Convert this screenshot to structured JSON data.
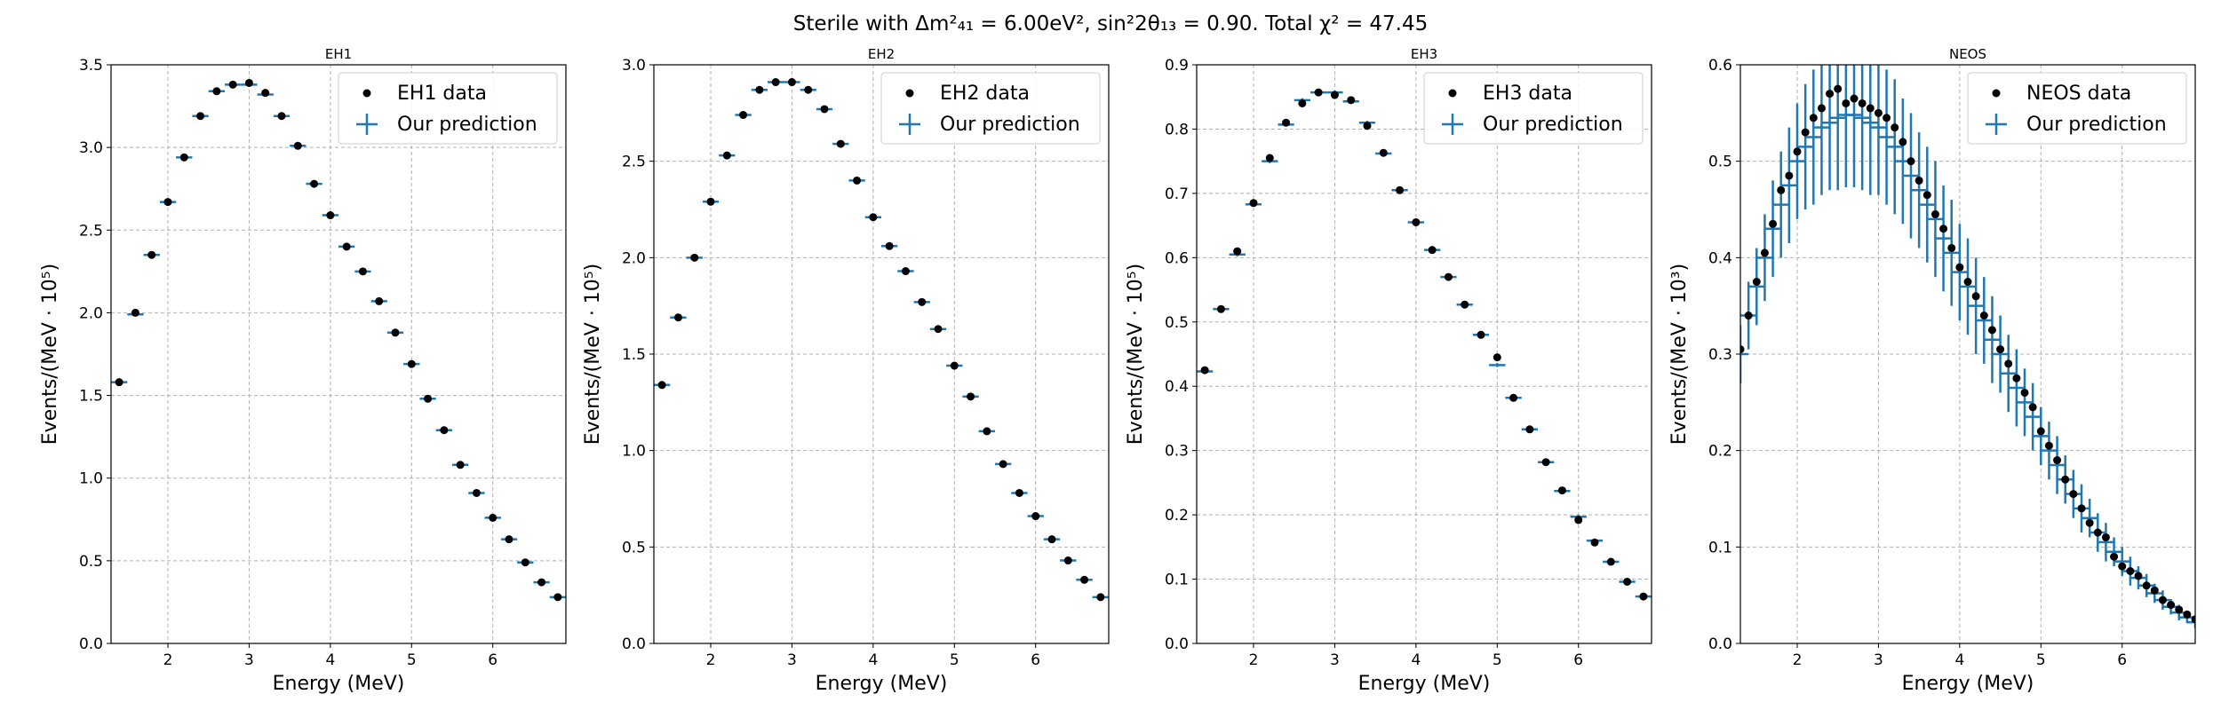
{
  "figure": {
    "suptitle": "Sterile with Δm²₄₁ = 6.00eV², sin²2θ₁₃ = 0.90. Total χ² = 47.45",
    "colors": {
      "data": "#000000",
      "prediction": "#1f77b4",
      "grid": "#b0b0b0"
    }
  },
  "chart_data": [
    {
      "type": "scatter",
      "title": "EH1",
      "xlabel": "Energy (MeV)",
      "ylabel": "Events/(MeV · 10⁵)",
      "xlim": [
        1.3,
        6.9
      ],
      "ylim": [
        0,
        3.5
      ],
      "xticks": [
        "2",
        "3",
        "4",
        "5",
        "6"
      ],
      "yticks": [
        "0.0",
        "0.5",
        "1.0",
        "1.5",
        "2.0",
        "2.5",
        "3.0",
        "3.5"
      ],
      "grid": true,
      "legend_position": "top-right",
      "x": [
        1.4,
        1.6,
        1.8,
        2.0,
        2.2,
        2.4,
        2.6,
        2.8,
        3.0,
        3.2,
        3.4,
        3.6,
        3.8,
        4.0,
        4.2,
        4.4,
        4.6,
        4.8,
        5.0,
        5.2,
        5.4,
        5.6,
        5.8,
        6.0,
        6.2,
        6.4,
        6.6,
        6.8
      ],
      "series": [
        {
          "name": "EH1 data",
          "marker": "dot",
          "values": [
            1.58,
            2.0,
            2.35,
            2.67,
            2.94,
            3.19,
            3.34,
            3.38,
            3.39,
            3.33,
            3.19,
            3.01,
            2.78,
            2.59,
            2.4,
            2.25,
            2.07,
            1.88,
            1.69,
            1.48,
            1.29,
            1.08,
            0.91,
            0.76,
            0.63,
            0.49,
            0.37,
            0.28
          ]
        },
        {
          "name": "Our prediction",
          "marker": "cross",
          "values": [
            1.58,
            1.99,
            2.35,
            2.67,
            2.94,
            3.19,
            3.34,
            3.38,
            3.38,
            3.32,
            3.19,
            3.01,
            2.78,
            2.59,
            2.4,
            2.25,
            2.07,
            1.88,
            1.69,
            1.48,
            1.29,
            1.08,
            0.91,
            0.76,
            0.63,
            0.49,
            0.37,
            0.28
          ],
          "xerr": 0.1,
          "yerr": 0.006
        }
      ]
    },
    {
      "type": "scatter",
      "title": "EH2",
      "xlabel": "Energy (MeV)",
      "ylabel": "Events/(MeV · 10⁵)",
      "xlim": [
        1.3,
        6.9
      ],
      "ylim": [
        0,
        3.0
      ],
      "xticks": [
        "2",
        "3",
        "4",
        "5",
        "6"
      ],
      "yticks": [
        "0.0",
        "0.5",
        "1.0",
        "1.5",
        "2.0",
        "2.5",
        "3.0"
      ],
      "grid": true,
      "legend_position": "top-right",
      "x": [
        1.4,
        1.6,
        1.8,
        2.0,
        2.2,
        2.4,
        2.6,
        2.8,
        3.0,
        3.2,
        3.4,
        3.6,
        3.8,
        4.0,
        4.2,
        4.4,
        4.6,
        4.8,
        5.0,
        5.2,
        5.4,
        5.6,
        5.8,
        6.0,
        6.2,
        6.4,
        6.6,
        6.8
      ],
      "series": [
        {
          "name": "EH2 data",
          "marker": "dot",
          "values": [
            1.34,
            1.69,
            2.0,
            2.29,
            2.53,
            2.74,
            2.87,
            2.91,
            2.91,
            2.87,
            2.77,
            2.59,
            2.4,
            2.21,
            2.06,
            1.93,
            1.77,
            1.63,
            1.44,
            1.28,
            1.1,
            0.93,
            0.78,
            0.66,
            0.54,
            0.43,
            0.33,
            0.24
          ]
        },
        {
          "name": "Our prediction",
          "marker": "cross",
          "values": [
            1.34,
            1.69,
            2.0,
            2.29,
            2.53,
            2.74,
            2.87,
            2.91,
            2.91,
            2.87,
            2.77,
            2.59,
            2.4,
            2.21,
            2.06,
            1.93,
            1.77,
            1.63,
            1.44,
            1.28,
            1.1,
            0.93,
            0.78,
            0.66,
            0.54,
            0.43,
            0.33,
            0.24
          ],
          "xerr": 0.1,
          "yerr": 0.006
        }
      ]
    },
    {
      "type": "scatter",
      "title": "EH3",
      "xlabel": "Energy (MeV)",
      "ylabel": "Events/(MeV · 10⁵)",
      "xlim": [
        1.3,
        6.9
      ],
      "ylim": [
        0,
        0.9
      ],
      "xticks": [
        "2",
        "3",
        "4",
        "5",
        "6"
      ],
      "yticks": [
        "0.0",
        "0.1",
        "0.2",
        "0.3",
        "0.4",
        "0.5",
        "0.6",
        "0.7",
        "0.8",
        "0.9"
      ],
      "grid": true,
      "legend_position": "top-right",
      "x": [
        1.4,
        1.6,
        1.8,
        2.0,
        2.2,
        2.4,
        2.6,
        2.8,
        3.0,
        3.2,
        3.4,
        3.6,
        3.8,
        4.0,
        4.2,
        4.4,
        4.6,
        4.8,
        5.0,
        5.2,
        5.4,
        5.6,
        5.8,
        6.0,
        6.2,
        6.4,
        6.6,
        6.8
      ],
      "series": [
        {
          "name": "EH3 data",
          "marker": "dot",
          "values": [
            0.425,
            0.52,
            0.61,
            0.685,
            0.755,
            0.81,
            0.84,
            0.857,
            0.853,
            0.845,
            0.805,
            0.763,
            0.705,
            0.655,
            0.612,
            0.57,
            0.527,
            0.48,
            0.445,
            0.382,
            0.333,
            0.282,
            0.238,
            0.192,
            0.157,
            0.127,
            0.096,
            0.073
          ]
        },
        {
          "name": "Our prediction",
          "marker": "cross",
          "values": [
            0.423,
            0.52,
            0.605,
            0.683,
            0.75,
            0.807,
            0.845,
            0.857,
            0.857,
            0.843,
            0.81,
            0.762,
            0.705,
            0.655,
            0.612,
            0.57,
            0.527,
            0.48,
            0.433,
            0.382,
            0.333,
            0.282,
            0.237,
            0.197,
            0.16,
            0.127,
            0.096,
            0.073
          ],
          "xerr": 0.1,
          "yerr": 0.003
        }
      ]
    },
    {
      "type": "scatter",
      "title": "NEOS",
      "xlabel": "Energy (MeV)",
      "ylabel": "Events/(MeV · 10³)",
      "xlim": [
        1.3,
        6.9
      ],
      "ylim": [
        0,
        0.6
      ],
      "xticks": [
        "2",
        "3",
        "4",
        "5",
        "6"
      ],
      "yticks": [
        "0.0",
        "0.1",
        "0.2",
        "0.3",
        "0.4",
        "0.5",
        "0.6"
      ],
      "grid": true,
      "legend_position": "top-right",
      "x": [
        1.3,
        1.4,
        1.5,
        1.6,
        1.7,
        1.8,
        1.9,
        2.0,
        2.1,
        2.2,
        2.3,
        2.4,
        2.5,
        2.6,
        2.7,
        2.8,
        2.9,
        3.0,
        3.1,
        3.2,
        3.3,
        3.4,
        3.5,
        3.6,
        3.7,
        3.8,
        3.9,
        4.0,
        4.1,
        4.2,
        4.3,
        4.4,
        4.5,
        4.6,
        4.7,
        4.8,
        4.9,
        5.0,
        5.1,
        5.2,
        5.3,
        5.4,
        5.5,
        5.6,
        5.7,
        5.8,
        5.9,
        6.0,
        6.1,
        6.2,
        6.3,
        6.4,
        6.5,
        6.6,
        6.7,
        6.8,
        6.9
      ],
      "series": [
        {
          "name": "NEOS data",
          "marker": "dot",
          "values": [
            0.305,
            0.34,
            0.375,
            0.405,
            0.435,
            0.47,
            0.485,
            0.51,
            0.53,
            0.545,
            0.555,
            0.57,
            0.575,
            0.56,
            0.565,
            0.56,
            0.555,
            0.55,
            0.545,
            0.535,
            0.52,
            0.5,
            0.48,
            0.465,
            0.445,
            0.43,
            0.41,
            0.39,
            0.375,
            0.36,
            0.34,
            0.325,
            0.305,
            0.29,
            0.275,
            0.26,
            0.245,
            0.22,
            0.205,
            0.19,
            0.17,
            0.155,
            0.14,
            0.125,
            0.115,
            0.11,
            0.09,
            0.08,
            0.075,
            0.07,
            0.06,
            0.055,
            0.045,
            0.04,
            0.035,
            0.03,
            0.025
          ]
        },
        {
          "name": "Our prediction",
          "marker": "cross",
          "values": [
            0.3,
            0.34,
            0.37,
            0.4,
            0.43,
            0.455,
            0.475,
            0.5,
            0.515,
            0.525,
            0.535,
            0.54,
            0.545,
            0.548,
            0.548,
            0.545,
            0.54,
            0.535,
            0.525,
            0.515,
            0.5,
            0.485,
            0.47,
            0.455,
            0.44,
            0.42,
            0.405,
            0.385,
            0.37,
            0.35,
            0.335,
            0.315,
            0.3,
            0.28,
            0.265,
            0.25,
            0.235,
            0.215,
            0.2,
            0.185,
            0.17,
            0.155,
            0.14,
            0.13,
            0.115,
            0.105,
            0.095,
            0.085,
            0.075,
            0.068,
            0.06,
            0.052,
            0.045,
            0.038,
            0.032,
            0.027,
            0.022
          ],
          "xerr": 0.1,
          "yerr": [
            0.03,
            0.035,
            0.04,
            0.045,
            0.05,
            0.055,
            0.06,
            0.06,
            0.065,
            0.07,
            0.07,
            0.07,
            0.075,
            0.075,
            0.075,
            0.075,
            0.075,
            0.07,
            0.07,
            0.07,
            0.065,
            0.065,
            0.06,
            0.06,
            0.06,
            0.055,
            0.055,
            0.05,
            0.05,
            0.05,
            0.045,
            0.045,
            0.04,
            0.04,
            0.04,
            0.035,
            0.035,
            0.03,
            0.03,
            0.03,
            0.025,
            0.025,
            0.025,
            0.02,
            0.02,
            0.02,
            0.015,
            0.015,
            0.015,
            0.012,
            0.012,
            0.01,
            0.01,
            0.008,
            0.008,
            0.006,
            0.006
          ]
        }
      ]
    }
  ]
}
